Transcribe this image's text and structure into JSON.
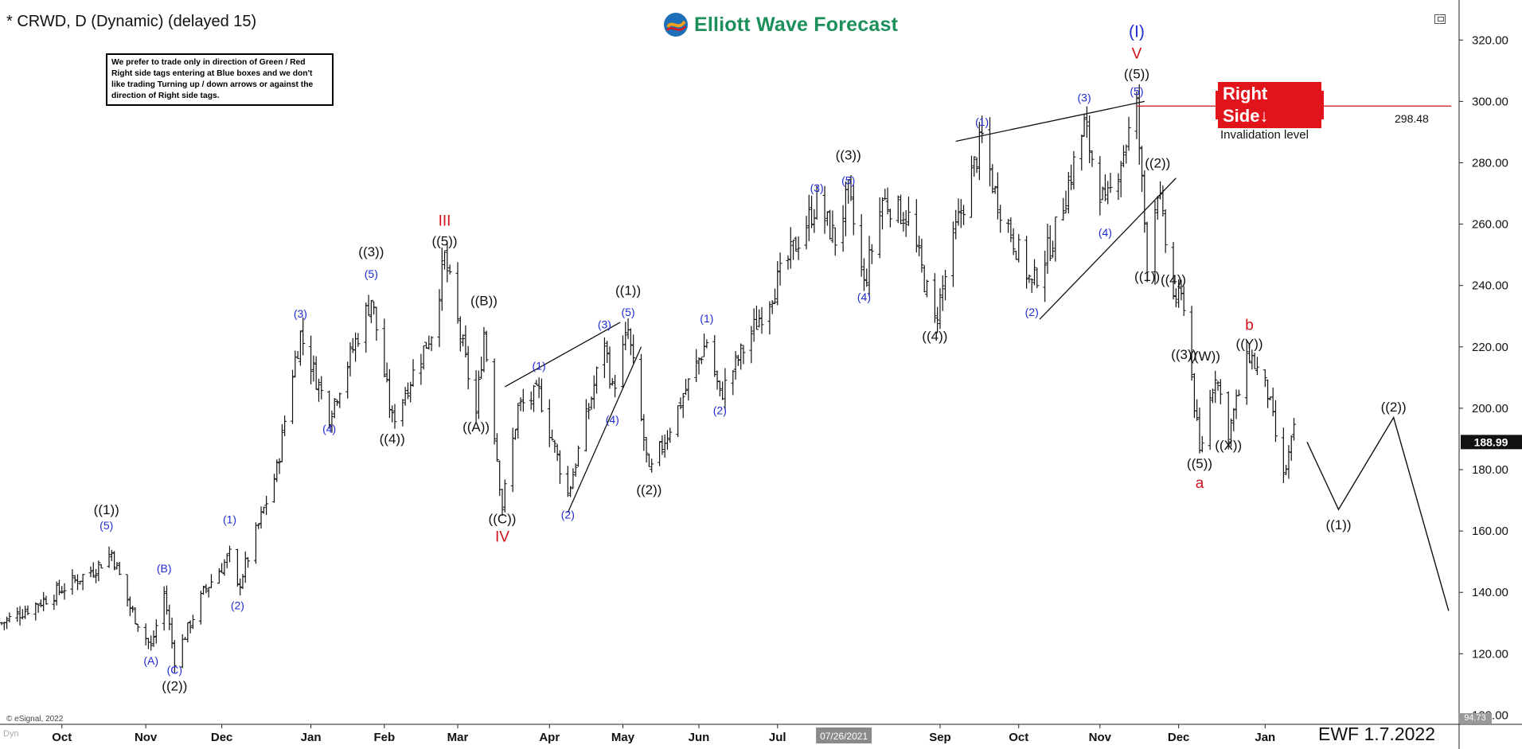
{
  "header": {
    "symbol_title": "* CRWD, D (Dynamic) (delayed 15)",
    "logo_text": "Elliott Wave Forecast",
    "note": "We prefer to trade only in direction of Green / Red Right side tags entering at Blue boxes and we don't like trading Turning up / down arrows or against the direction of Right side tags."
  },
  "badge": {
    "label": "Right Side",
    "color": "#e1141b"
  },
  "invalidation": {
    "label": "Invalidation level",
    "value_label": "298.48",
    "value": 298.48
  },
  "footer": {
    "ewf_date": "EWF 1.7.2022",
    "esignal": "© eSignal, 2022",
    "dyn": "Dyn",
    "date_cursor": "07/26/2021"
  },
  "price_axis": {
    "current_price_label": "188.99",
    "min_label": "94.73"
  },
  "colors": {
    "black": "#111111",
    "blue": "#1f2bd0",
    "red": "#d0121b",
    "green": "#1c8f5a"
  },
  "chart_data": {
    "type": "ohlc",
    "ylim": [
      97,
      332
    ],
    "yticks": [
      100,
      120,
      140,
      160,
      180,
      200,
      220,
      240,
      260,
      280,
      300,
      320
    ],
    "ytick_labels": [
      "100.00",
      "120.00",
      "140.00",
      "160.00",
      "180.00",
      "200.00",
      "220.00",
      "240.00",
      "260.00",
      "280.00",
      "300.00",
      "320.00"
    ],
    "xlim": [
      "2020-09-08",
      "2022-03-18"
    ],
    "month_ticks": [
      {
        "label": "Oct",
        "date": "2020-10-01"
      },
      {
        "label": "Nov",
        "date": "2020-11-02"
      },
      {
        "label": "Dec",
        "date": "2020-12-01"
      },
      {
        "label": "Jan",
        "date": "2021-01-04"
      },
      {
        "label": "Feb",
        "date": "2021-02-01"
      },
      {
        "label": "Mar",
        "date": "2021-03-01"
      },
      {
        "label": "Apr",
        "date": "2021-04-05"
      },
      {
        "label": "May",
        "date": "2021-05-03"
      },
      {
        "label": "Jun",
        "date": "2021-06-01"
      },
      {
        "label": "Jul",
        "date": "2021-07-01"
      },
      {
        "label": "Sep",
        "date": "2021-09-01"
      },
      {
        "label": "Oct",
        "date": "2021-10-01"
      },
      {
        "label": "Nov",
        "date": "2021-11-01"
      },
      {
        "label": "Dec",
        "date": "2021-12-01"
      },
      {
        "label": "Jan",
        "date": "2022-01-03"
      }
    ],
    "price_anchors": [
      [
        "2020-09-08",
        130
      ],
      [
        "2020-09-25",
        138
      ],
      [
        "2020-10-14",
        148
      ],
      [
        "2020-10-20",
        153
      ],
      [
        "2020-10-27",
        135
      ],
      [
        "2020-11-04",
        122
      ],
      [
        "2020-11-09",
        140
      ],
      [
        "2020-11-13",
        118
      ],
      [
        "2020-11-24",
        140
      ],
      [
        "2020-12-04",
        152
      ],
      [
        "2020-12-07",
        141
      ],
      [
        "2020-12-22",
        180
      ],
      [
        "2020-12-28",
        212
      ],
      [
        "2020-12-31",
        224
      ],
      [
        "2021-01-11",
        198
      ],
      [
        "2021-01-27",
        236
      ],
      [
        "2021-02-04",
        196
      ],
      [
        "2021-02-19",
        225
      ],
      [
        "2021-02-24",
        249
      ],
      [
        "2021-03-08",
        198
      ],
      [
        "2021-03-11",
        225
      ],
      [
        "2021-03-18",
        168
      ],
      [
        "2021-03-24",
        200
      ],
      [
        "2021-04-01",
        205
      ],
      [
        "2021-04-12",
        172
      ],
      [
        "2021-04-20",
        200
      ],
      [
        "2021-04-26",
        222
      ],
      [
        "2021-04-29",
        206
      ],
      [
        "2021-05-05",
        225
      ],
      [
        "2021-05-13",
        178
      ],
      [
        "2021-06-04",
        222
      ],
      [
        "2021-06-09",
        204
      ],
      [
        "2021-07-16",
        267
      ],
      [
        "2021-07-23",
        255
      ],
      [
        "2021-07-28",
        270
      ],
      [
        "2021-08-03",
        240
      ],
      [
        "2021-08-10",
        268
      ],
      [
        "2021-08-20",
        262
      ],
      [
        "2021-08-30",
        228
      ],
      [
        "2021-09-07",
        258
      ],
      [
        "2021-09-17",
        288
      ],
      [
        "2021-09-22",
        270
      ],
      [
        "2021-10-06",
        240
      ],
      [
        "2021-10-14",
        255
      ],
      [
        "2021-10-26",
        292
      ],
      [
        "2021-11-03",
        265
      ],
      [
        "2021-11-15",
        298
      ],
      [
        "2021-11-19",
        248
      ],
      [
        "2021-11-23",
        272
      ],
      [
        "2021-11-29",
        236
      ],
      [
        "2021-12-03",
        235
      ],
      [
        "2021-12-09",
        185
      ],
      [
        "2021-12-15",
        212
      ],
      [
        "2021-12-20",
        192
      ],
      [
        "2021-12-28",
        218
      ],
      [
        "2022-01-04",
        205
      ],
      [
        "2022-01-10",
        177
      ],
      [
        "2022-01-14",
        192
      ]
    ],
    "projection": [
      [
        "2022-01-19",
        188.99
      ],
      [
        "2022-01-31",
        167
      ],
      [
        "2022-02-21",
        197
      ],
      [
        "2022-03-14",
        134
      ]
    ],
    "trendlines": [
      {
        "name": "ending-diagonal-top-1",
        "from": [
          "2021-03-19",
          207
        ],
        "to": [
          "2021-05-02",
          228
        ]
      },
      {
        "name": "ending-diagonal-bottom-1",
        "from": [
          "2021-04-12",
          166
        ],
        "to": [
          "2021-05-10",
          220
        ]
      },
      {
        "name": "ending-diagonal-top-2",
        "from": [
          "2021-09-07",
          287
        ],
        "to": [
          "2021-11-18",
          300
        ]
      },
      {
        "name": "ending-diagonal-bottom-2",
        "from": [
          "2021-10-09",
          229
        ],
        "to": [
          "2021-11-30",
          275
        ]
      }
    ],
    "invalidation_line": {
      "from": "2021-11-15",
      "to": "2022-03-15",
      "value": 298.48
    },
    "wave_labels": [
      {
        "text": "((1))",
        "date": "2020-10-18",
        "price": 165.5,
        "color": "black"
      },
      {
        "text": "(5)",
        "date": "2020-10-18",
        "price": 160.5,
        "color": "blue"
      },
      {
        "text": "(B)",
        "date": "2020-11-09",
        "price": 146.5,
        "color": "blue"
      },
      {
        "text": "(A)",
        "date": "2020-11-04",
        "price": 116.5,
        "color": "blue"
      },
      {
        "text": "(C)",
        "date": "2020-11-13",
        "price": 113.5,
        "color": "blue"
      },
      {
        "text": "((2))",
        "date": "2020-11-13",
        "price": 108,
        "color": "black"
      },
      {
        "text": "(1)",
        "date": "2020-12-04",
        "price": 162.5,
        "color": "blue"
      },
      {
        "text": "(2)",
        "date": "2020-12-07",
        "price": 134.5,
        "color": "blue"
      },
      {
        "text": "(3)",
        "date": "2020-12-31",
        "price": 229.5,
        "color": "blue"
      },
      {
        "text": "(4)",
        "date": "2021-01-11",
        "price": 192,
        "color": "blue"
      },
      {
        "text": "((3))",
        "date": "2021-01-27",
        "price": 249.5,
        "color": "black"
      },
      {
        "text": "(5)",
        "date": "2021-01-27",
        "price": 242.5,
        "color": "blue"
      },
      {
        "text": "((4))",
        "date": "2021-02-04",
        "price": 188.5,
        "color": "black"
      },
      {
        "text": "III",
        "date": "2021-02-24",
        "price": 259.5,
        "color": "red"
      },
      {
        "text": "((5))",
        "date": "2021-02-24",
        "price": 253,
        "color": "black"
      },
      {
        "text": "((B))",
        "date": "2021-03-11",
        "price": 233.5,
        "color": "black"
      },
      {
        "text": "((A))",
        "date": "2021-03-08",
        "price": 192.5,
        "color": "black"
      },
      {
        "text": "((C))",
        "date": "2021-03-18",
        "price": 162.5,
        "color": "black"
      },
      {
        "text": "IV",
        "date": "2021-03-18",
        "price": 156.5,
        "color": "red"
      },
      {
        "text": "(1)",
        "date": "2021-04-01",
        "price": 212.5,
        "color": "blue"
      },
      {
        "text": "(2)",
        "date": "2021-04-12",
        "price": 164,
        "color": "blue"
      },
      {
        "text": "(3)",
        "date": "2021-04-26",
        "price": 226,
        "color": "blue"
      },
      {
        "text": "(4)",
        "date": "2021-04-29",
        "price": 195,
        "color": "blue"
      },
      {
        "text": "((1))",
        "date": "2021-05-05",
        "price": 237,
        "color": "black"
      },
      {
        "text": "(5)",
        "date": "2021-05-05",
        "price": 230,
        "color": "blue"
      },
      {
        "text": "((2))",
        "date": "2021-05-13",
        "price": 172,
        "color": "black"
      },
      {
        "text": "(1)",
        "date": "2021-06-04",
        "price": 228,
        "color": "blue"
      },
      {
        "text": "(2)",
        "date": "2021-06-09",
        "price": 198,
        "color": "blue"
      },
      {
        "text": "(3)",
        "date": "2021-07-16",
        "price": 270.5,
        "color": "blue"
      },
      {
        "text": "((3))",
        "date": "2021-07-28",
        "price": 281,
        "color": "black"
      },
      {
        "text": "(5)",
        "date": "2021-07-28",
        "price": 273,
        "color": "blue"
      },
      {
        "text": "(4)",
        "date": "2021-08-03",
        "price": 235,
        "color": "blue"
      },
      {
        "text": "((4))",
        "date": "2021-08-30",
        "price": 222,
        "color": "black"
      },
      {
        "text": "(1)",
        "date": "2021-09-17",
        "price": 292,
        "color": "blue"
      },
      {
        "text": "(2)",
        "date": "2021-10-06",
        "price": 230,
        "color": "blue"
      },
      {
        "text": "(3)",
        "date": "2021-10-26",
        "price": 300,
        "color": "blue"
      },
      {
        "text": "(4)",
        "date": "2021-11-03",
        "price": 256,
        "color": "blue"
      },
      {
        "text": "(I)",
        "date": "2021-11-15",
        "price": 321,
        "color": "blue"
      },
      {
        "text": "V",
        "date": "2021-11-15",
        "price": 314,
        "color": "red"
      },
      {
        "text": "((5))",
        "date": "2021-11-15",
        "price": 307.5,
        "color": "black"
      },
      {
        "text": "(5)",
        "date": "2021-11-15",
        "price": 302,
        "color": "blue"
      },
      {
        "text": "((2))",
        "date": "2021-11-23",
        "price": 278.5,
        "color": "black"
      },
      {
        "text": "((1))",
        "date": "2021-11-19",
        "price": 241.5,
        "color": "black"
      },
      {
        "text": "((4))",
        "date": "2021-11-29",
        "price": 240.5,
        "color": "black"
      },
      {
        "text": "((3))",
        "date": "2021-12-03",
        "price": 216,
        "color": "black"
      },
      {
        "text": "((W))",
        "date": "2021-12-11",
        "price": 215.5,
        "color": "black"
      },
      {
        "text": "((X))",
        "date": "2021-12-20",
        "price": 186.5,
        "color": "black"
      },
      {
        "text": "((5))",
        "date": "2021-12-09",
        "price": 180.5,
        "color": "black"
      },
      {
        "text": "a",
        "date": "2021-12-09",
        "price": 174,
        "color": "red"
      },
      {
        "text": "b",
        "date": "2021-12-28",
        "price": 225.5,
        "color": "red"
      },
      {
        "text": "((Y))",
        "date": "2021-12-28",
        "price": 219.5,
        "color": "black"
      },
      {
        "text": "((2))",
        "date": "2022-02-21",
        "price": 199,
        "color": "black"
      },
      {
        "text": "((1))",
        "date": "2022-01-31",
        "price": 160.5,
        "color": "black"
      }
    ]
  }
}
